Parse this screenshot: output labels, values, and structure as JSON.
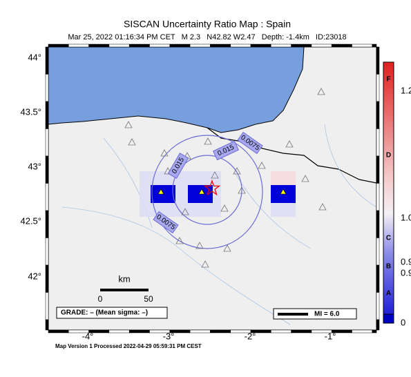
{
  "header": {
    "title": "SISCAN Uncertainty Ratio Map : Spain",
    "subtitle": "Mar 25, 2022 01:16:34 PM CET   M 2.3   N42.82 W2.47   Depth: -1.4km   ID:23018"
  },
  "map": {
    "lat_labels": [
      "44°",
      "43.5°",
      "43°",
      "42.5°",
      "42°"
    ],
    "lon_labels": [
      "-4°",
      "-3°",
      "-2°",
      "-1°"
    ],
    "contour_labels": [
      "0.015",
      "0.015",
      "0.0075",
      "0.0075"
    ],
    "scale": {
      "unit": "km",
      "start": "0",
      "end": "50"
    },
    "grade": "GRADE: – (Mean sigma: –)",
    "mmi": "MI = 6.0"
  },
  "colorbar": {
    "letters": [
      "F",
      "D",
      "C",
      "B",
      "A"
    ],
    "labels": [
      "1.2",
      "1.0",
      "0.9",
      "0.9",
      "0"
    ]
  },
  "footer": "Map Version 1 Processed 2022-04-29 05:59:31 PM CEST"
}
